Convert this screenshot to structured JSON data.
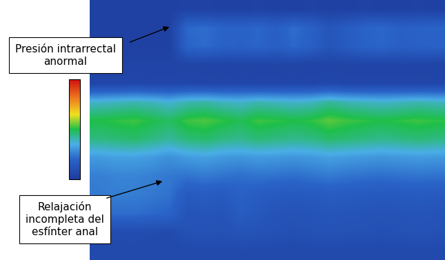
{
  "chart_data": {
    "type": "heatmap",
    "cells": [
      [
        5,
        5,
        5,
        5,
        5,
        6,
        6,
        5,
        5,
        6,
        5,
        5,
        6,
        5,
        5,
        6,
        5,
        5,
        6,
        5
      ],
      [
        5,
        5,
        5,
        5,
        5,
        38,
        40,
        36,
        35,
        38,
        33,
        40,
        34,
        24,
        30,
        36,
        38,
        34,
        35,
        36
      ],
      [
        5,
        5,
        5,
        5,
        5,
        36,
        39,
        35,
        34,
        37,
        32,
        38,
        33,
        23,
        29,
        35,
        37,
        33,
        34,
        35
      ],
      [
        7,
        7,
        8,
        8,
        8,
        8,
        8,
        7,
        8,
        8,
        8,
        8,
        7,
        8,
        8,
        8,
        7,
        8,
        8,
        7
      ],
      [
        10,
        10,
        11,
        10,
        10,
        11,
        10,
        10,
        11,
        10,
        10,
        11,
        10,
        12,
        10,
        10,
        11,
        10,
        10,
        10
      ],
      [
        68,
        70,
        72,
        70,
        66,
        72,
        74,
        70,
        68,
        72,
        70,
        68,
        70,
        76,
        72,
        70,
        68,
        70,
        72,
        70
      ],
      [
        90,
        92,
        94,
        90,
        86,
        94,
        96,
        92,
        88,
        94,
        92,
        90,
        92,
        98,
        94,
        92,
        90,
        92,
        94,
        92
      ],
      [
        80,
        82,
        84,
        80,
        76,
        82,
        84,
        80,
        78,
        82,
        80,
        78,
        80,
        84,
        82,
        80,
        78,
        80,
        82,
        80
      ],
      [
        56,
        58,
        58,
        56,
        52,
        56,
        58,
        55,
        54,
        56,
        55,
        54,
        55,
        58,
        56,
        55,
        54,
        55,
        56,
        55
      ],
      [
        46,
        48,
        48,
        46,
        44,
        42,
        44,
        42,
        40,
        42,
        41,
        40,
        42,
        44,
        42,
        41,
        40,
        41,
        42,
        41
      ],
      [
        45,
        46,
        46,
        44,
        42,
        28,
        30,
        28,
        34,
        30,
        28,
        27,
        28,
        30,
        29,
        28,
        27,
        28,
        29,
        28
      ],
      [
        38,
        40,
        40,
        38,
        36,
        22,
        24,
        22,
        30,
        26,
        22,
        21,
        22,
        24,
        23,
        22,
        21,
        22,
        23,
        22
      ],
      [
        15,
        16,
        16,
        15,
        14,
        20,
        21,
        20,
        22,
        21,
        20,
        19,
        20,
        21,
        20,
        20,
        19,
        20,
        21,
        20
      ],
      [
        12,
        12,
        13,
        12,
        12,
        13,
        14,
        13,
        14,
        13,
        13,
        12,
        13,
        14,
        13,
        13,
        12,
        13,
        13,
        13
      ]
    ],
    "zlim": [
      0,
      180
    ],
    "tick_labels": false,
    "annotations": [
      "Presión intrarrectal\nanormal",
      "Relajación\nincompleta del\nesfínter anal"
    ]
  }
}
